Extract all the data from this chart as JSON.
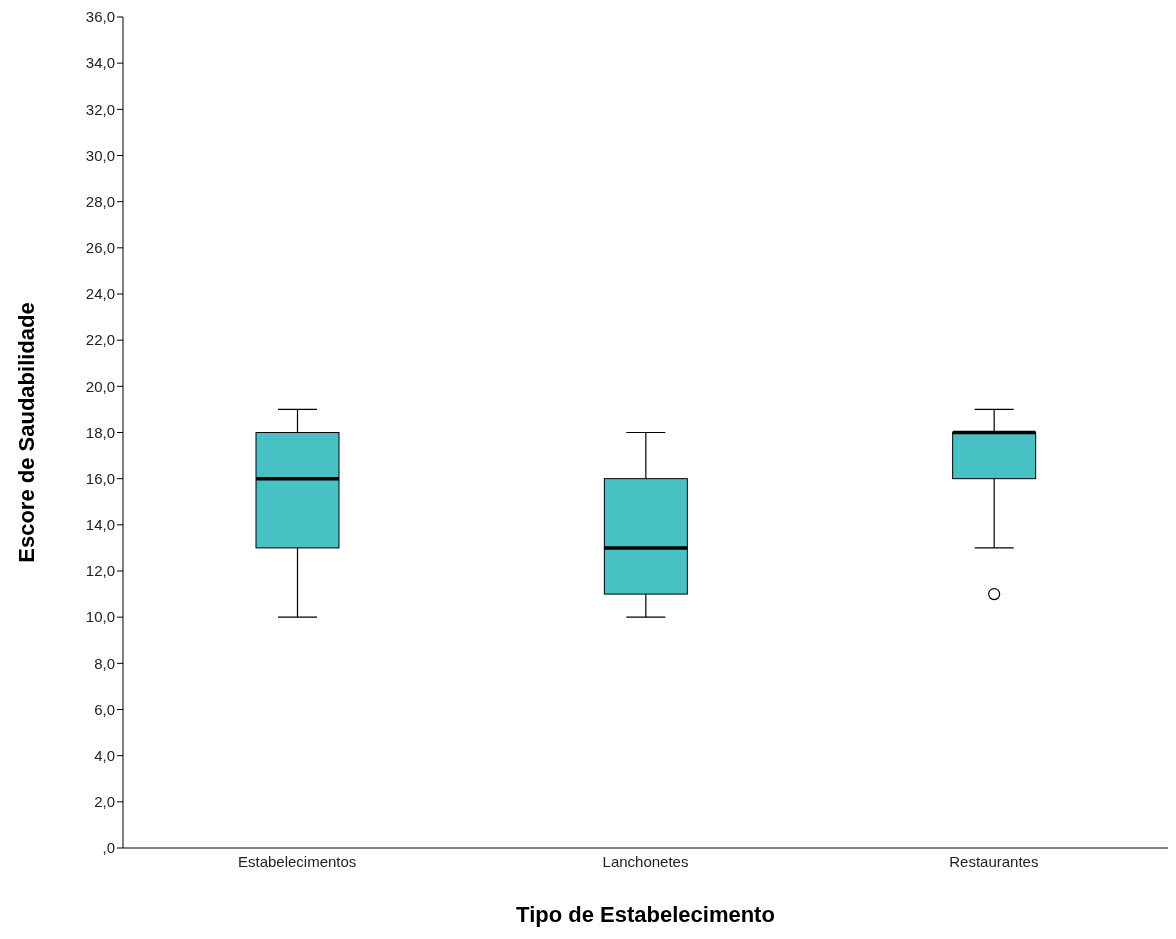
{
  "chart_data": {
    "type": "box",
    "xlabel": "Tipo de Estabelecimento",
    "ylabel": "Escore de Saudabilidade",
    "categories": [
      "Estabelecimentos",
      "Lanchonetes",
      "Restaurantes"
    ],
    "color": "#48c1c4",
    "boxes": [
      {
        "low": 10,
        "q1": 13,
        "median": 16,
        "q3": 18,
        "high": 19
      },
      {
        "low": 10,
        "q1": 11,
        "median": 13,
        "q3": 16,
        "high": 18
      },
      {
        "low": 13,
        "q1": 16,
        "median": 18,
        "q3": 18,
        "high": 19,
        "outliers": [
          11
        ]
      }
    ],
    "ylim": [
      0,
      36
    ],
    "yticks": [
      {
        "value": 0,
        "label": ",0"
      },
      {
        "value": 2,
        "label": "2,0"
      },
      {
        "value": 4,
        "label": "4,0"
      },
      {
        "value": 6,
        "label": "6,0"
      },
      {
        "value": 8,
        "label": "8,0"
      },
      {
        "value": 10,
        "label": "10,0"
      },
      {
        "value": 12,
        "label": "12,0"
      },
      {
        "value": 14,
        "label": "14,0"
      },
      {
        "value": 16,
        "label": "16,0"
      },
      {
        "value": 18,
        "label": "18,0"
      },
      {
        "value": 20,
        "label": "20,0"
      },
      {
        "value": 22,
        "label": "22,0"
      },
      {
        "value": 24,
        "label": "24,0"
      },
      {
        "value": 26,
        "label": "26,0"
      },
      {
        "value": 28,
        "label": "28,0"
      },
      {
        "value": 30,
        "label": "30,0"
      },
      {
        "value": 32,
        "label": "32,0"
      },
      {
        "value": 34,
        "label": "34,0"
      },
      {
        "value": 36,
        "label": "36,0"
      }
    ],
    "grid": false,
    "legend": false
  }
}
